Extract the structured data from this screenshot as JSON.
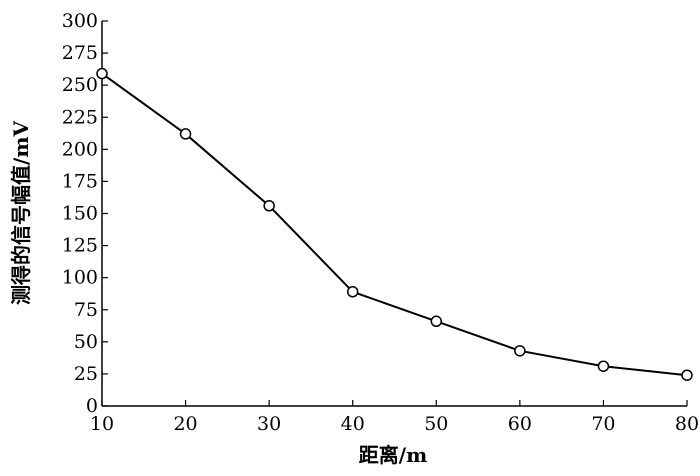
{
  "chart_data": {
    "type": "line",
    "title": "",
    "xlabel": "距离/m",
    "ylabel": "测得的信号幅值/mV",
    "x": [
      10,
      20,
      30,
      40,
      50,
      60,
      70,
      80
    ],
    "series": [
      {
        "values": [
          259,
          212,
          156,
          89,
          66,
          43,
          31,
          24
        ],
        "marker": "circle",
        "color": "#000000"
      }
    ],
    "xlim": [
      10,
      80
    ],
    "ylim": [
      0,
      300
    ],
    "xticks": [
      10,
      20,
      30,
      40,
      50,
      60,
      70,
      80
    ],
    "yticks": [
      0,
      25,
      50,
      75,
      100,
      125,
      150,
      175,
      200,
      225,
      250,
      275,
      300
    ],
    "xtick_labels": [
      "10",
      "20",
      "30",
      "40",
      "50",
      "60",
      "70",
      "80"
    ],
    "ytick_labels": [
      "0",
      "25",
      "50",
      "75",
      "100",
      "125",
      "150",
      "175",
      "200",
      "225",
      "250",
      "275",
      "300"
    ],
    "grid": false,
    "legend": "none"
  }
}
